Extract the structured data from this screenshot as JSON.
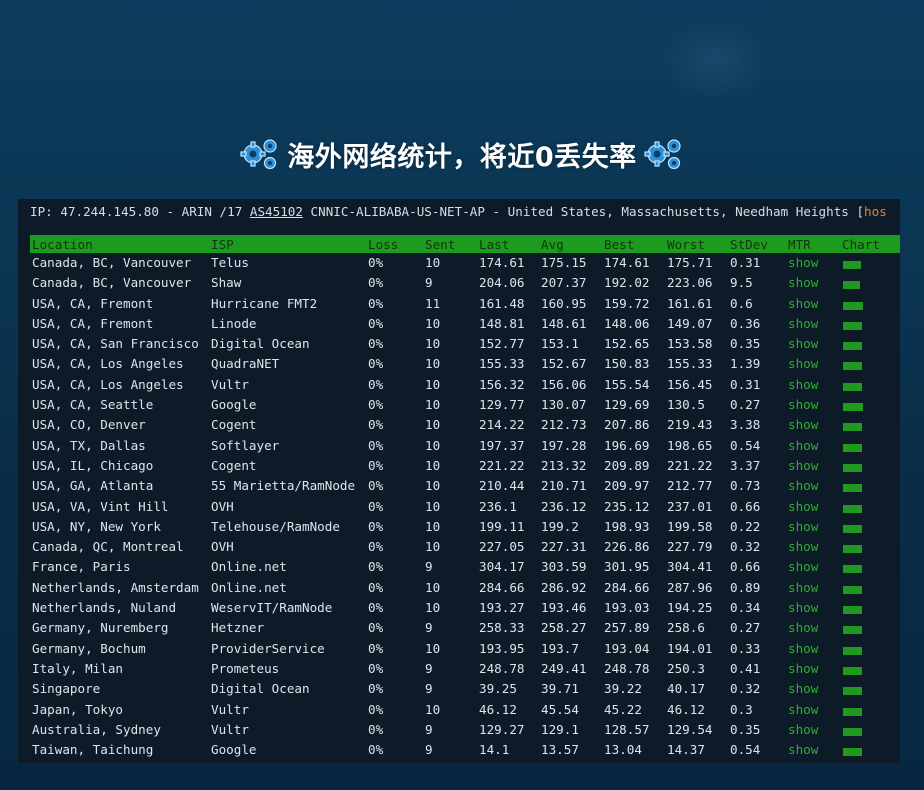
{
  "banner": {
    "title": "海外网络统计，将近0丢失率"
  },
  "ip_info": {
    "prefix": "IP: 47.244.145.80 - ARIN /17 ",
    "asn": "AS45102",
    "suffix": " CNNIC-ALIBABA-US-NET-AP - United States, Massachusetts, Needham Heights [",
    "host": "hos"
  },
  "columns": [
    "Location",
    "ISP",
    "Loss",
    "Sent",
    "Last",
    "Avg",
    "Best",
    "Worst",
    "StDev",
    "MTR",
    "Chart"
  ],
  "rows": [
    {
      "location": "Canada, BC, Vancouver",
      "isp": "Telus",
      "loss": "0%",
      "sent": "10",
      "last": "174.61",
      "avg": "175.15",
      "best": "174.61",
      "worst": "175.71",
      "stdev": "0.31",
      "mtr": "show",
      "chart": 0.8
    },
    {
      "location": "Canada, BC, Vancouver",
      "isp": "Shaw",
      "loss": "0%",
      "sent": "9",
      "last": "204.06",
      "avg": "207.37",
      "best": "192.02",
      "worst": "223.06",
      "stdev": "9.5",
      "mtr": "show",
      "chart": 0.75
    },
    {
      "location": "USA, CA, Fremont",
      "isp": "Hurricane FMT2",
      "loss": "0%",
      "sent": "11",
      "last": "161.48",
      "avg": "160.95",
      "best": "159.72",
      "worst": "161.61",
      "stdev": "0.6",
      "mtr": "show",
      "chart": 0.9
    },
    {
      "location": "USA, CA, Fremont",
      "isp": "Linode",
      "loss": "0%",
      "sent": "10",
      "last": "148.81",
      "avg": "148.61",
      "best": "148.06",
      "worst": "149.07",
      "stdev": "0.36",
      "mtr": "show",
      "chart": 0.85
    },
    {
      "location": "USA, CA, San Francisco",
      "isp": "Digital Ocean",
      "loss": "0%",
      "sent": "10",
      "last": "152.77",
      "avg": "153.1",
      "best": "152.65",
      "worst": "153.58",
      "stdev": "0.35",
      "mtr": "show",
      "chart": 0.85
    },
    {
      "location": "USA, CA, Los Angeles",
      "isp": "QuadraNET",
      "loss": "0%",
      "sent": "10",
      "last": "155.33",
      "avg": "152.67",
      "best": "150.83",
      "worst": "155.33",
      "stdev": "1.39",
      "mtr": "show",
      "chart": 0.85
    },
    {
      "location": "USA, CA, Los Angeles",
      "isp": "Vultr",
      "loss": "0%",
      "sent": "10",
      "last": "156.32",
      "avg": "156.06",
      "best": "155.54",
      "worst": "156.45",
      "stdev": "0.31",
      "mtr": "show",
      "chart": 0.85
    },
    {
      "location": "USA, CA, Seattle",
      "isp": "Google",
      "loss": "0%",
      "sent": "10",
      "last": "129.77",
      "avg": "130.07",
      "best": "129.69",
      "worst": "130.5",
      "stdev": "0.27",
      "mtr": "show",
      "chart": 0.9
    },
    {
      "location": "USA, CO, Denver",
      "isp": "Cogent",
      "loss": "0%",
      "sent": "10",
      "last": "214.22",
      "avg": "212.73",
      "best": "207.86",
      "worst": "219.43",
      "stdev": "3.38",
      "mtr": "show",
      "chart": 0.85
    },
    {
      "location": "USA, TX, Dallas",
      "isp": "Softlayer",
      "loss": "0%",
      "sent": "10",
      "last": "197.37",
      "avg": "197.28",
      "best": "196.69",
      "worst": "198.65",
      "stdev": "0.54",
      "mtr": "show",
      "chart": 0.85
    },
    {
      "location": "USA, IL, Chicago",
      "isp": "Cogent",
      "loss": "0%",
      "sent": "10",
      "last": "221.22",
      "avg": "213.32",
      "best": "209.89",
      "worst": "221.22",
      "stdev": "3.37",
      "mtr": "show",
      "chart": 0.85
    },
    {
      "location": "USA, GA, Atlanta",
      "isp": "55 Marietta/RamNode",
      "loss": "0%",
      "sent": "10",
      "last": "210.44",
      "avg": "210.71",
      "best": "209.97",
      "worst": "212.77",
      "stdev": "0.73",
      "mtr": "show",
      "chart": 0.85
    },
    {
      "location": "USA, VA, Vint Hill",
      "isp": "OVH",
      "loss": "0%",
      "sent": "10",
      "last": "236.1",
      "avg": "236.12",
      "best": "235.12",
      "worst": "237.01",
      "stdev": "0.66",
      "mtr": "show",
      "chart": 0.85
    },
    {
      "location": "USA, NY, New York",
      "isp": "Telehouse/RamNode",
      "loss": "0%",
      "sent": "10",
      "last": "199.11",
      "avg": "199.2",
      "best": "198.93",
      "worst": "199.58",
      "stdev": "0.22",
      "mtr": "show",
      "chart": 0.85
    },
    {
      "location": "Canada, QC, Montreal",
      "isp": "OVH",
      "loss": "0%",
      "sent": "10",
      "last": "227.05",
      "avg": "227.31",
      "best": "226.86",
      "worst": "227.79",
      "stdev": "0.32",
      "mtr": "show",
      "chart": 0.85
    },
    {
      "location": "France, Paris",
      "isp": "Online.net",
      "loss": "0%",
      "sent": "9",
      "last": "304.17",
      "avg": "303.59",
      "best": "301.95",
      "worst": "304.41",
      "stdev": "0.66",
      "mtr": "show",
      "chart": 0.85
    },
    {
      "location": "Netherlands, Amsterdam",
      "isp": "Online.net",
      "loss": "0%",
      "sent": "10",
      "last": "284.66",
      "avg": "286.92",
      "best": "284.66",
      "worst": "287.96",
      "stdev": "0.89",
      "mtr": "show",
      "chart": 0.85
    },
    {
      "location": "Netherlands, Nuland",
      "isp": "WeservIT/RamNode",
      "loss": "0%",
      "sent": "10",
      "last": "193.27",
      "avg": "193.46",
      "best": "193.03",
      "worst": "194.25",
      "stdev": "0.34",
      "mtr": "show",
      "chart": 0.85
    },
    {
      "location": "Germany, Nuremberg",
      "isp": "Hetzner",
      "loss": "0%",
      "sent": "9",
      "last": "258.33",
      "avg": "258.27",
      "best": "257.89",
      "worst": "258.6",
      "stdev": "0.27",
      "mtr": "show",
      "chart": 0.85
    },
    {
      "location": "Germany, Bochum",
      "isp": "ProviderService",
      "loss": "0%",
      "sent": "10",
      "last": "193.95",
      "avg": "193.7",
      "best": "193.04",
      "worst": "194.01",
      "stdev": "0.33",
      "mtr": "show",
      "chart": 0.85
    },
    {
      "location": "Italy, Milan",
      "isp": "Prometeus",
      "loss": "0%",
      "sent": "9",
      "last": "248.78",
      "avg": "249.41",
      "best": "248.78",
      "worst": "250.3",
      "stdev": "0.41",
      "mtr": "show",
      "chart": 0.85
    },
    {
      "location": "Singapore",
      "isp": "Digital Ocean",
      "loss": "0%",
      "sent": "9",
      "last": "39.25",
      "avg": "39.71",
      "best": "39.22",
      "worst": "40.17",
      "stdev": "0.32",
      "mtr": "show",
      "chart": 0.85
    },
    {
      "location": "Japan, Tokyo",
      "isp": "Vultr",
      "loss": "0%",
      "sent": "10",
      "last": "46.12",
      "avg": "45.54",
      "best": "45.22",
      "worst": "46.12",
      "stdev": "0.3",
      "mtr": "show",
      "chart": 0.85
    },
    {
      "location": "Australia, Sydney",
      "isp": "Vultr",
      "loss": "0%",
      "sent": "9",
      "last": "129.27",
      "avg": "129.1",
      "best": "128.57",
      "worst": "129.54",
      "stdev": "0.35",
      "mtr": "show",
      "chart": 0.85
    },
    {
      "location": "Taiwan, Taichung",
      "isp": "Google",
      "loss": "0%",
      "sent": "9",
      "last": "14.1",
      "avg": "13.57",
      "best": "13.04",
      "worst": "14.37",
      "stdev": "0.54",
      "mtr": "show",
      "chart": 0.85
    }
  ],
  "colors": {
    "header_bg": "#1e9a1e",
    "header_text": "#0b3a0b",
    "link": "#2fae2f",
    "terminal_bg": "#0d1a28",
    "host_text": "#e8843a"
  },
  "icons": {
    "left": "gears-icon",
    "right": "gears-icon"
  }
}
